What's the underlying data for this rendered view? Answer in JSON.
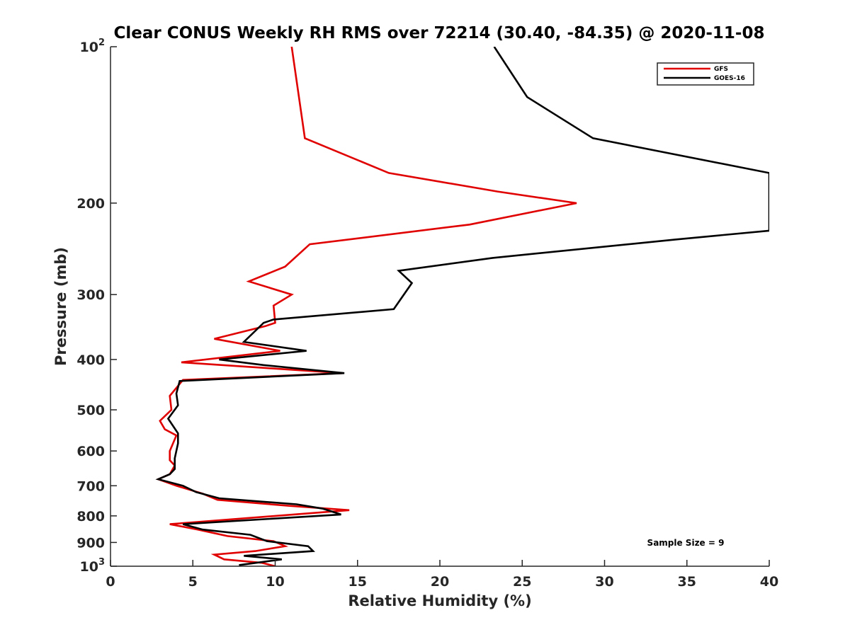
{
  "chart_data": {
    "type": "line",
    "title": "Clear CONUS Weekly RH RMS over 72214 (30.40, -84.35) @ 2020-11-08",
    "xlabel": "Relative Humidity (%)",
    "ylabel": "Pressure (mb)",
    "xlim": [
      0,
      40
    ],
    "ylim": [
      100,
      1000
    ],
    "yscale": "log",
    "ydirection": "reverse",
    "xticks": [
      0,
      5,
      10,
      15,
      20,
      25,
      30,
      35,
      40
    ],
    "xtick_labels": [
      "0",
      "5",
      "10",
      "15",
      "20",
      "25",
      "30",
      "35",
      "40"
    ],
    "yticks": [
      100,
      200,
      300,
      400,
      500,
      600,
      700,
      800,
      900,
      1000
    ],
    "ytick_labels": [
      {
        "base": "10",
        "exp": "2"
      },
      {
        "text": "200"
      },
      {
        "text": "300"
      },
      {
        "text": "400"
      },
      {
        "text": "500"
      },
      {
        "text": "600"
      },
      {
        "text": "700"
      },
      {
        "text": "800"
      },
      {
        "text": "900"
      },
      {
        "base": "10",
        "exp": "3"
      }
    ],
    "legend_position": "top-right",
    "annotation": "Sample Size = 9",
    "series": [
      {
        "name": "GFS",
        "color": "#e00000",
        "points": [
          [
            11.0,
            100
          ],
          [
            11.8,
            150
          ],
          [
            16.9,
            175
          ],
          [
            23.5,
            190
          ],
          [
            28.3,
            200
          ],
          [
            21.8,
            220
          ],
          [
            12.1,
            240
          ],
          [
            10.6,
            265
          ],
          [
            8.4,
            283
          ],
          [
            11.0,
            300
          ],
          [
            9.9,
            315
          ],
          [
            10.0,
            340
          ],
          [
            9.4,
            345
          ],
          [
            6.3,
            365
          ],
          [
            10.3,
            385
          ],
          [
            4.3,
            405
          ],
          [
            9.2,
            415
          ],
          [
            14.1,
            425
          ],
          [
            4.4,
            438
          ],
          [
            3.6,
            470
          ],
          [
            3.7,
            500
          ],
          [
            3.0,
            525
          ],
          [
            3.3,
            545
          ],
          [
            4.0,
            560
          ],
          [
            3.6,
            600
          ],
          [
            3.6,
            625
          ],
          [
            3.9,
            640
          ],
          [
            3.6,
            665
          ],
          [
            2.9,
            680
          ],
          [
            4.0,
            700
          ],
          [
            5.6,
            725
          ],
          [
            6.5,
            745
          ],
          [
            10.8,
            765
          ],
          [
            14.5,
            780
          ],
          [
            3.6,
            830
          ],
          [
            5.3,
            850
          ],
          [
            7.1,
            875
          ],
          [
            9.9,
            895
          ],
          [
            10.6,
            915
          ],
          [
            8.8,
            935
          ],
          [
            6.3,
            950
          ],
          [
            6.9,
            970
          ],
          [
            9.2,
            985
          ],
          [
            10.0,
            1000
          ]
        ]
      },
      {
        "name": "GOES-16",
        "color": "#000000",
        "points": [
          [
            23.3,
            100
          ],
          [
            25.3,
            125
          ],
          [
            29.3,
            150
          ],
          [
            40.0,
            175
          ],
          [
            40.0,
            226
          ],
          [
            34.3,
            235
          ],
          [
            23.2,
            255
          ],
          [
            17.5,
            270
          ],
          [
            18.3,
            285
          ],
          [
            17.2,
            320
          ],
          [
            9.9,
            335
          ],
          [
            9.3,
            340
          ],
          [
            8.1,
            370
          ],
          [
            11.9,
            385
          ],
          [
            6.6,
            400
          ],
          [
            9.3,
            410
          ],
          [
            14.2,
            425
          ],
          [
            4.2,
            440
          ],
          [
            4.0,
            465
          ],
          [
            4.1,
            490
          ],
          [
            3.5,
            520
          ],
          [
            4.1,
            555
          ],
          [
            4.1,
            580
          ],
          [
            3.9,
            620
          ],
          [
            3.9,
            650
          ],
          [
            3.6,
            665
          ],
          [
            2.9,
            680
          ],
          [
            4.4,
            700
          ],
          [
            5.2,
            720
          ],
          [
            6.6,
            740
          ],
          [
            11.3,
            760
          ],
          [
            12.9,
            775
          ],
          [
            14.0,
            795
          ],
          [
            4.4,
            830
          ],
          [
            5.6,
            850
          ],
          [
            8.5,
            870
          ],
          [
            9.5,
            895
          ],
          [
            12.0,
            915
          ],
          [
            12.3,
            935
          ],
          [
            8.1,
            955
          ],
          [
            10.4,
            970
          ],
          [
            7.8,
            995
          ]
        ]
      }
    ]
  }
}
